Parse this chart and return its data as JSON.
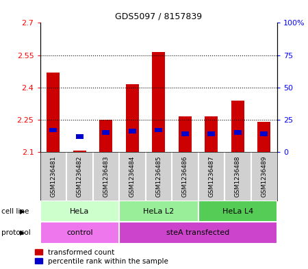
{
  "title": "GDS5097 / 8157839",
  "samples": [
    "GSM1236481",
    "GSM1236482",
    "GSM1236483",
    "GSM1236484",
    "GSM1236485",
    "GSM1236486",
    "GSM1236487",
    "GSM1236488",
    "GSM1236489"
  ],
  "red_values": [
    2.47,
    2.105,
    2.25,
    2.415,
    2.565,
    2.265,
    2.265,
    2.34,
    2.24
  ],
  "blue_values_pct": [
    17,
    12,
    15,
    16,
    17,
    14,
    14,
    15,
    14
  ],
  "ylim_left": [
    2.1,
    2.7
  ],
  "ylim_right": [
    0,
    100
  ],
  "yticks_left": [
    2.1,
    2.25,
    2.4,
    2.55,
    2.7
  ],
  "yticks_right": [
    0,
    25,
    50,
    75,
    100
  ],
  "ytick_labels_left": [
    "2.1",
    "2.25",
    "2.4",
    "2.55",
    "2.7"
  ],
  "ytick_labels_right": [
    "0",
    "25",
    "50",
    "75",
    "100%"
  ],
  "cell_line_groups": [
    {
      "label": "HeLa",
      "start": 0,
      "end": 3,
      "color": "#ccffcc"
    },
    {
      "label": "HeLa L2",
      "start": 3,
      "end": 6,
      "color": "#99ee99"
    },
    {
      "label": "HeLa L4",
      "start": 6,
      "end": 9,
      "color": "#55cc55"
    }
  ],
  "protocol_groups": [
    {
      "label": "control",
      "start": 0,
      "end": 3,
      "color": "#ee77ee"
    },
    {
      "label": "steA transfected",
      "start": 3,
      "end": 9,
      "color": "#cc44cc"
    }
  ],
  "legend_red_label": "transformed count",
  "legend_blue_label": "percentile rank within the sample",
  "bar_width": 0.5,
  "base_value": 2.1,
  "red_color": "#cc0000",
  "blue_color": "#0000cc",
  "xticklabel_area_color": "#d0d0d0",
  "cell_line_label_color": "#d0d0d0",
  "protocol_label_color": "#d0d0d0"
}
